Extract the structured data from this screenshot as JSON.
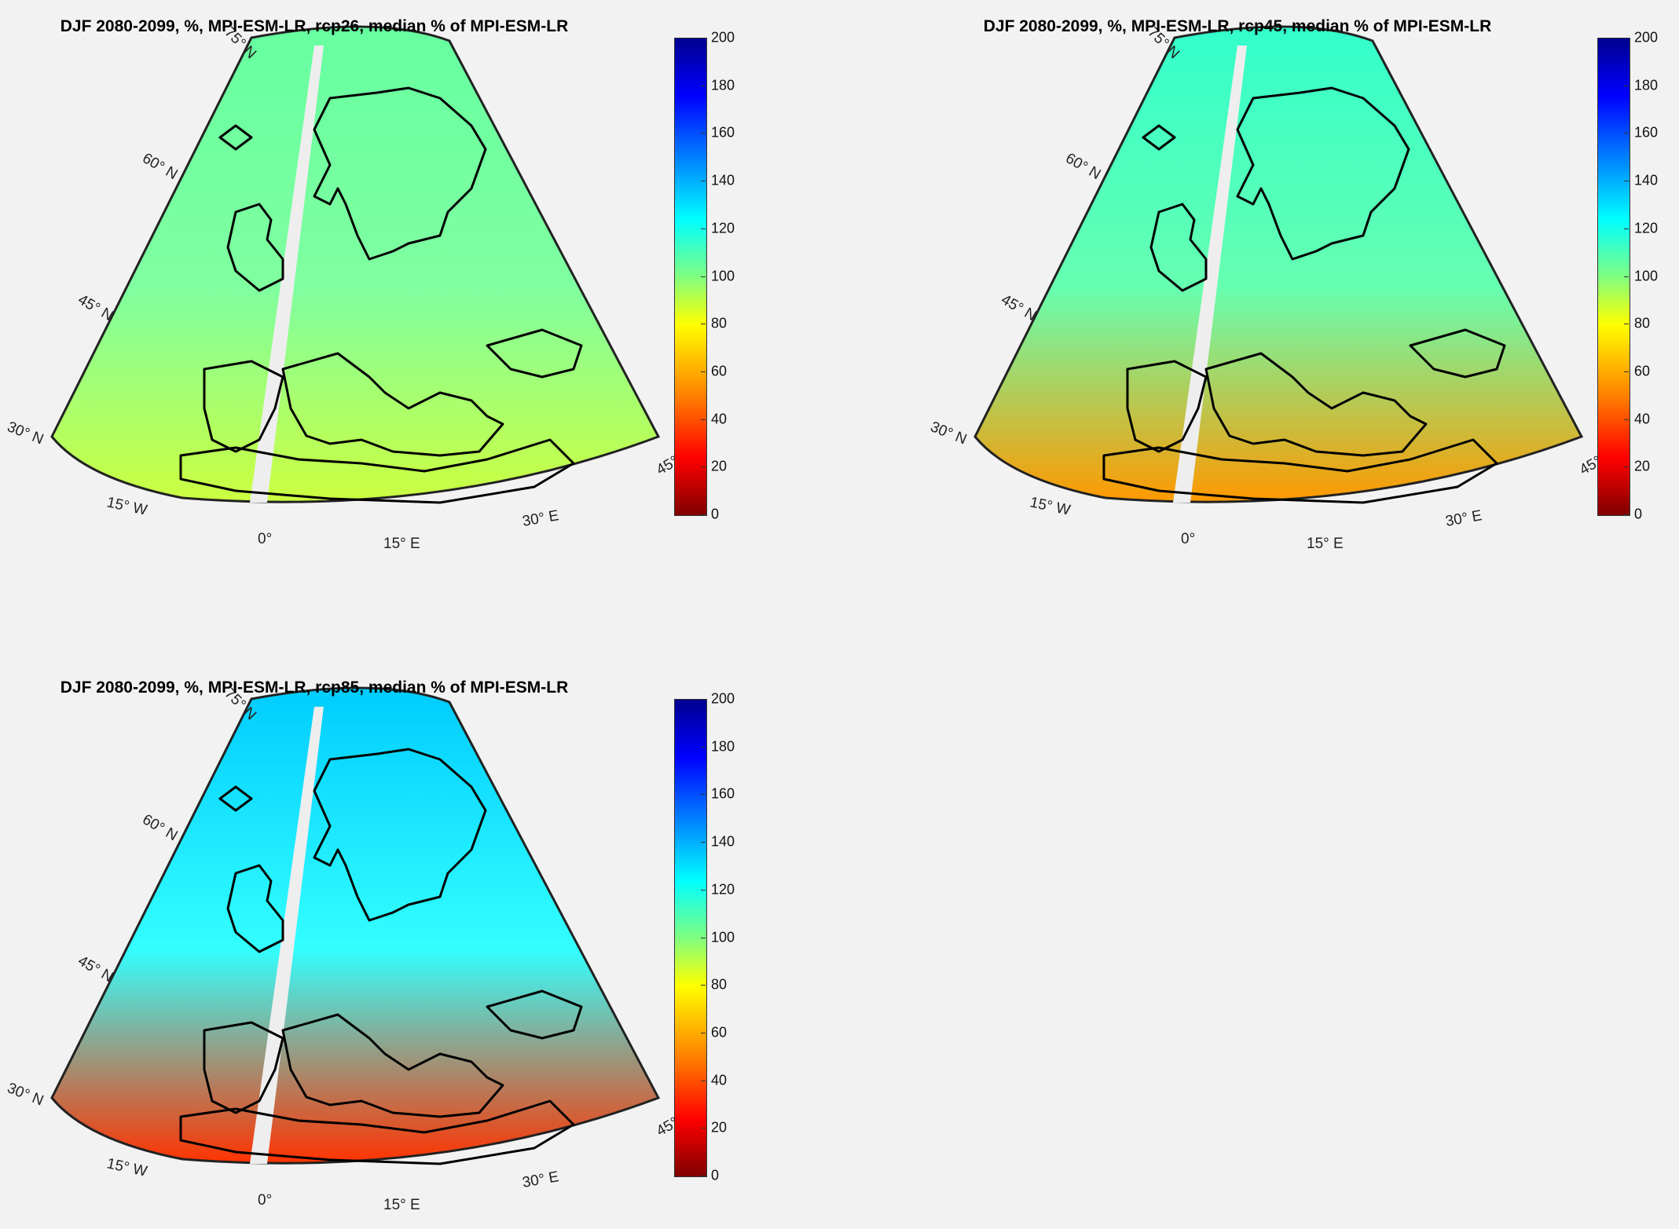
{
  "panels": [
    {
      "title": "DJF 2080-2099, %, MPI-ESM-LR, rcp26, median % of MPI-ESM-LR",
      "scenario": "rcp26"
    },
    {
      "title": "DJF 2080-2099, %, MPI-ESM-LR, rcp45, median % of MPI-ESM-LR",
      "scenario": "rcp45"
    },
    {
      "title": "DJF 2080-2099, %, MPI-ESM-LR, rcp85, median % of MPI-ESM-LR",
      "scenario": "rcp85"
    }
  ],
  "lat_labels": [
    "30° N",
    "45° N",
    "60° N",
    "75° N"
  ],
  "lon_labels": [
    "15° W",
    "0°",
    "15° E",
    "30° E",
    "45°"
  ],
  "colorbar": {
    "ticks": [
      "0",
      "20",
      "40",
      "60",
      "80",
      "100",
      "120",
      "140",
      "160",
      "180",
      "200"
    ],
    "min": 0,
    "max": 200,
    "colors": [
      "#800000",
      "#ff0000",
      "#ff8000",
      "#ffff00",
      "#80ff80",
      "#00ffff",
      "#0080ff",
      "#0000ff",
      "#00008f"
    ]
  },
  "map_fill": {
    "rcp26": {
      "north": "#66ffa0",
      "mid": "#80ffa0",
      "south": "#ccff40"
    },
    "rcp45": {
      "north": "#33ffcc",
      "mid": "#66ffb0",
      "south": "#ff9900"
    },
    "rcp85": {
      "north": "#00ccff",
      "mid": "#33ffff",
      "south": "#ff3300"
    }
  }
}
